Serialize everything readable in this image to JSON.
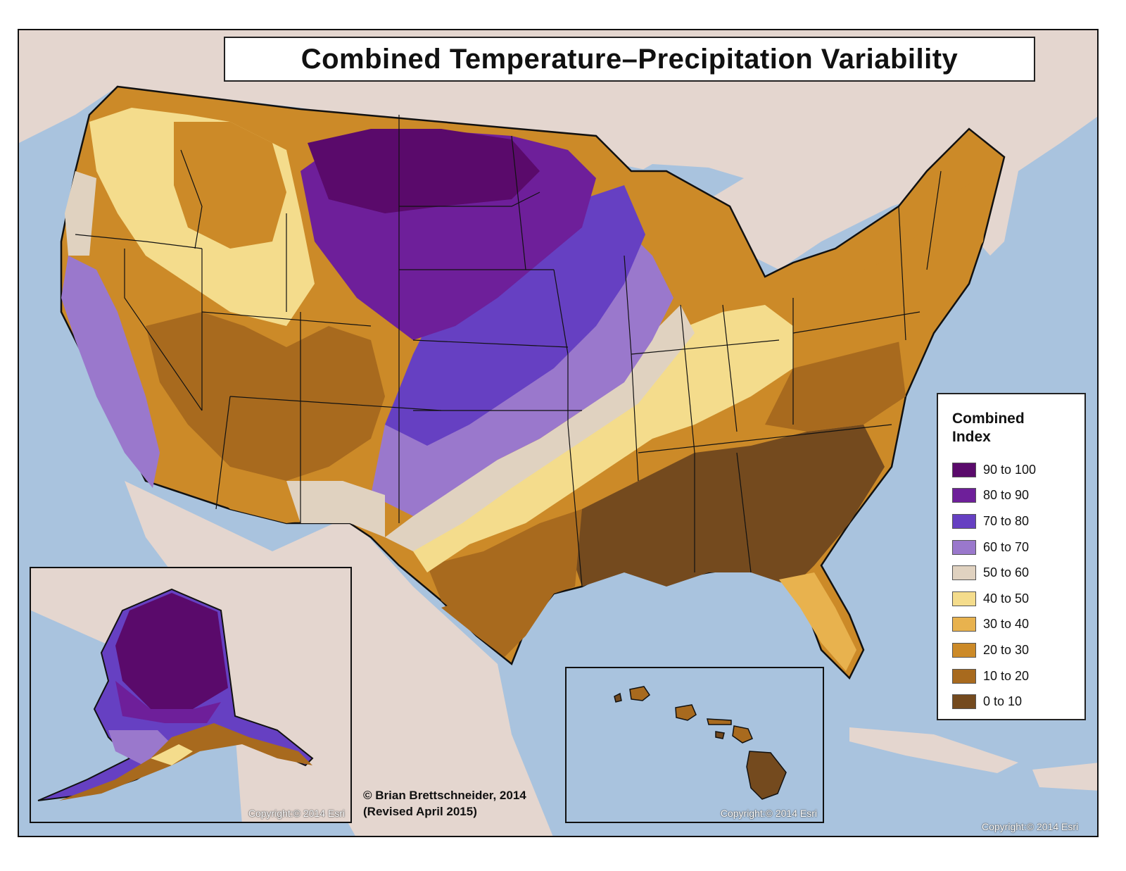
{
  "title": "Combined Temperature–Precipitation Variability",
  "legend": {
    "title_line1": "Combined",
    "title_line2": "Index",
    "items": [
      {
        "label": "90 to 100",
        "color": "#5a0a6b"
      },
      {
        "label": "80 to 90",
        "color": "#6e1f9a"
      },
      {
        "label": "70 to 80",
        "color": "#6640c2"
      },
      {
        "label": "60 to 70",
        "color": "#9a78cc"
      },
      {
        "label": "50 to 60",
        "color": "#e0d2c0"
      },
      {
        "label": "40 to 50",
        "color": "#f4dc8c"
      },
      {
        "label": "30 to 40",
        "color": "#e8b24e"
      },
      {
        "label": "20 to 30",
        "color": "#cc8a28"
      },
      {
        "label": "10 to 20",
        "color": "#a86a1e"
      },
      {
        "label": "0 to 10",
        "color": "#744a1e"
      }
    ]
  },
  "credit": {
    "line1": "© Brian Brettschneider, 2014",
    "line2": "(Revised April 2015)"
  },
  "copyright": {
    "alaska": "Copyright:© 2014 Esri",
    "hawaii": "Copyright:© 2014 Esri",
    "main": "Copyright:© 2014 Esri"
  },
  "colors": {
    "water": "#a9c3de",
    "land_other": "#e4d6cf",
    "border": "#111111"
  }
}
